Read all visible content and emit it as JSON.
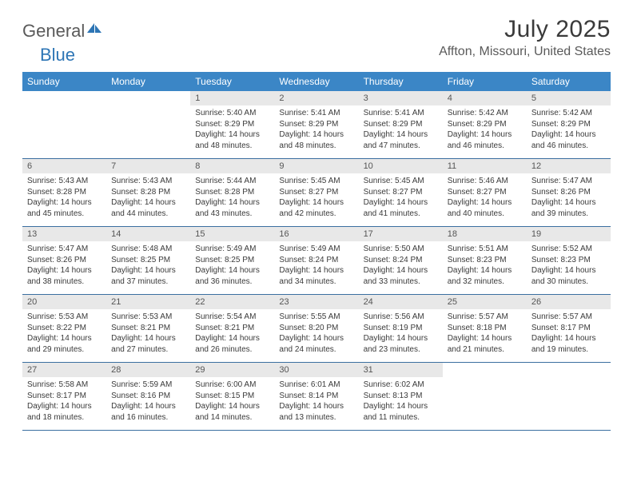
{
  "logo": {
    "text_general": "General",
    "text_blue": "Blue"
  },
  "title": "July 2025",
  "location": "Affton, Missouri, United States",
  "colors": {
    "header_bg": "#3b86c6",
    "header_text": "#ffffff",
    "daynum_bg": "#e8e8e8",
    "daynum_text": "#555555",
    "body_text": "#3a3a3a",
    "week_border": "#3b6fa0",
    "logo_blue": "#2d75b5"
  },
  "daynames": [
    "Sunday",
    "Monday",
    "Tuesday",
    "Wednesday",
    "Thursday",
    "Friday",
    "Saturday"
  ],
  "weeks": [
    [
      null,
      null,
      {
        "n": "1",
        "sr": "5:40 AM",
        "ss": "8:29 PM",
        "dl": "14 hours and 48 minutes."
      },
      {
        "n": "2",
        "sr": "5:41 AM",
        "ss": "8:29 PM",
        "dl": "14 hours and 48 minutes."
      },
      {
        "n": "3",
        "sr": "5:41 AM",
        "ss": "8:29 PM",
        "dl": "14 hours and 47 minutes."
      },
      {
        "n": "4",
        "sr": "5:42 AM",
        "ss": "8:29 PM",
        "dl": "14 hours and 46 minutes."
      },
      {
        "n": "5",
        "sr": "5:42 AM",
        "ss": "8:29 PM",
        "dl": "14 hours and 46 minutes."
      }
    ],
    [
      {
        "n": "6",
        "sr": "5:43 AM",
        "ss": "8:28 PM",
        "dl": "14 hours and 45 minutes."
      },
      {
        "n": "7",
        "sr": "5:43 AM",
        "ss": "8:28 PM",
        "dl": "14 hours and 44 minutes."
      },
      {
        "n": "8",
        "sr": "5:44 AM",
        "ss": "8:28 PM",
        "dl": "14 hours and 43 minutes."
      },
      {
        "n": "9",
        "sr": "5:45 AM",
        "ss": "8:27 PM",
        "dl": "14 hours and 42 minutes."
      },
      {
        "n": "10",
        "sr": "5:45 AM",
        "ss": "8:27 PM",
        "dl": "14 hours and 41 minutes."
      },
      {
        "n": "11",
        "sr": "5:46 AM",
        "ss": "8:27 PM",
        "dl": "14 hours and 40 minutes."
      },
      {
        "n": "12",
        "sr": "5:47 AM",
        "ss": "8:26 PM",
        "dl": "14 hours and 39 minutes."
      }
    ],
    [
      {
        "n": "13",
        "sr": "5:47 AM",
        "ss": "8:26 PM",
        "dl": "14 hours and 38 minutes."
      },
      {
        "n": "14",
        "sr": "5:48 AM",
        "ss": "8:25 PM",
        "dl": "14 hours and 37 minutes."
      },
      {
        "n": "15",
        "sr": "5:49 AM",
        "ss": "8:25 PM",
        "dl": "14 hours and 36 minutes."
      },
      {
        "n": "16",
        "sr": "5:49 AM",
        "ss": "8:24 PM",
        "dl": "14 hours and 34 minutes."
      },
      {
        "n": "17",
        "sr": "5:50 AM",
        "ss": "8:24 PM",
        "dl": "14 hours and 33 minutes."
      },
      {
        "n": "18",
        "sr": "5:51 AM",
        "ss": "8:23 PM",
        "dl": "14 hours and 32 minutes."
      },
      {
        "n": "19",
        "sr": "5:52 AM",
        "ss": "8:23 PM",
        "dl": "14 hours and 30 minutes."
      }
    ],
    [
      {
        "n": "20",
        "sr": "5:53 AM",
        "ss": "8:22 PM",
        "dl": "14 hours and 29 minutes."
      },
      {
        "n": "21",
        "sr": "5:53 AM",
        "ss": "8:21 PM",
        "dl": "14 hours and 27 minutes."
      },
      {
        "n": "22",
        "sr": "5:54 AM",
        "ss": "8:21 PM",
        "dl": "14 hours and 26 minutes."
      },
      {
        "n": "23",
        "sr": "5:55 AM",
        "ss": "8:20 PM",
        "dl": "14 hours and 24 minutes."
      },
      {
        "n": "24",
        "sr": "5:56 AM",
        "ss": "8:19 PM",
        "dl": "14 hours and 23 minutes."
      },
      {
        "n": "25",
        "sr": "5:57 AM",
        "ss": "8:18 PM",
        "dl": "14 hours and 21 minutes."
      },
      {
        "n": "26",
        "sr": "5:57 AM",
        "ss": "8:17 PM",
        "dl": "14 hours and 19 minutes."
      }
    ],
    [
      {
        "n": "27",
        "sr": "5:58 AM",
        "ss": "8:17 PM",
        "dl": "14 hours and 18 minutes."
      },
      {
        "n": "28",
        "sr": "5:59 AM",
        "ss": "8:16 PM",
        "dl": "14 hours and 16 minutes."
      },
      {
        "n": "29",
        "sr": "6:00 AM",
        "ss": "8:15 PM",
        "dl": "14 hours and 14 minutes."
      },
      {
        "n": "30",
        "sr": "6:01 AM",
        "ss": "8:14 PM",
        "dl": "14 hours and 13 minutes."
      },
      {
        "n": "31",
        "sr": "6:02 AM",
        "ss": "8:13 PM",
        "dl": "14 hours and 11 minutes."
      },
      null,
      null
    ]
  ],
  "labels": {
    "sunrise": "Sunrise: ",
    "sunset": "Sunset: ",
    "daylight": "Daylight: "
  }
}
